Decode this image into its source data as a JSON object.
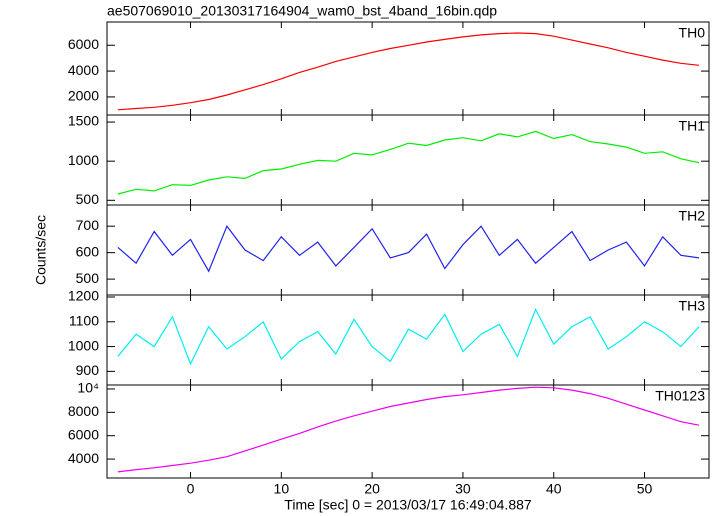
{
  "chart_data": {
    "type": "line",
    "title": "ae507069010_20130317164904_wam0_bst_4band_16bin.qdp",
    "xlabel": "Time [sec] 0 = 2013/03/17 16:49:04.887",
    "ylabel": "Counts/sec",
    "xlim": [
      -9.2,
      57.1
    ],
    "xticks": [
      0,
      10,
      20,
      30,
      40,
      50
    ],
    "x": [
      -8,
      -6,
      -4,
      -2,
      0,
      2,
      4,
      6,
      8,
      10,
      12,
      14,
      16,
      18,
      20,
      22,
      24,
      26,
      28,
      30,
      32,
      34,
      36,
      38,
      40,
      42,
      44,
      46,
      48,
      50,
      52,
      54,
      56
    ],
    "series": [
      {
        "name": "TH0",
        "color": "#ff0000",
        "ylim": [
          600,
          7800
        ],
        "yticks": [
          2000,
          4000,
          6000
        ],
        "values": [
          1000,
          1100,
          1200,
          1350,
          1550,
          1800,
          2150,
          2550,
          2950,
          3400,
          3900,
          4300,
          4750,
          5100,
          5450,
          5750,
          6000,
          6250,
          6450,
          6650,
          6800,
          6900,
          6950,
          6900,
          6700,
          6400,
          6100,
          5800,
          5450,
          5150,
          4850,
          4600,
          4450
        ]
      },
      {
        "name": "TH1",
        "color": "#00ee00",
        "ylim": [
          440,
          1590
        ],
        "yticks": [
          500,
          1000,
          1500
        ],
        "values": [
          580,
          640,
          620,
          700,
          690,
          760,
          800,
          780,
          880,
          900,
          960,
          1010,
          1000,
          1100,
          1080,
          1150,
          1230,
          1200,
          1270,
          1300,
          1260,
          1350,
          1310,
          1380,
          1290,
          1340,
          1250,
          1220,
          1180,
          1100,
          1120,
          1030,
          980
        ]
      },
      {
        "name": "TH2",
        "color": "#2222ee",
        "ylim": [
          440,
          780
        ],
        "yticks": [
          500,
          600,
          700
        ],
        "values": [
          620,
          560,
          680,
          590,
          650,
          530,
          700,
          610,
          570,
          660,
          590,
          640,
          550,
          620,
          690,
          580,
          600,
          670,
          540,
          630,
          700,
          590,
          650,
          560,
          620,
          680,
          570,
          610,
          640,
          550,
          660,
          590,
          580
        ]
      },
      {
        "name": "TH3",
        "color": "#00eeee",
        "ylim": [
          845,
          1208
        ],
        "yticks": [
          900,
          1000,
          1100,
          1200
        ],
        "values": [
          960,
          1050,
          1000,
          1120,
          930,
          1080,
          990,
          1040,
          1100,
          950,
          1020,
          1060,
          970,
          1110,
          1000,
          940,
          1070,
          1030,
          1130,
          980,
          1050,
          1090,
          960,
          1150,
          1010,
          1080,
          1120,
          990,
          1040,
          1100,
          1060,
          1000,
          1080
        ]
      },
      {
        "name": "TH0123",
        "color": "#ee00ee",
        "ylim": [
          2380,
          10340
        ],
        "yticks": [
          4000,
          6000,
          8000,
          {
            "value": 10000,
            "label": "10⁴"
          }
        ],
        "values": [
          2900,
          3100,
          3250,
          3450,
          3650,
          3900,
          4200,
          4700,
          5200,
          5700,
          6200,
          6750,
          7250,
          7700,
          8100,
          8500,
          8800,
          9100,
          9350,
          9500,
          9700,
          9900,
          10050,
          10150,
          10100,
          9900,
          9600,
          9200,
          8700,
          8200,
          7700,
          7200,
          6900
        ]
      }
    ]
  }
}
